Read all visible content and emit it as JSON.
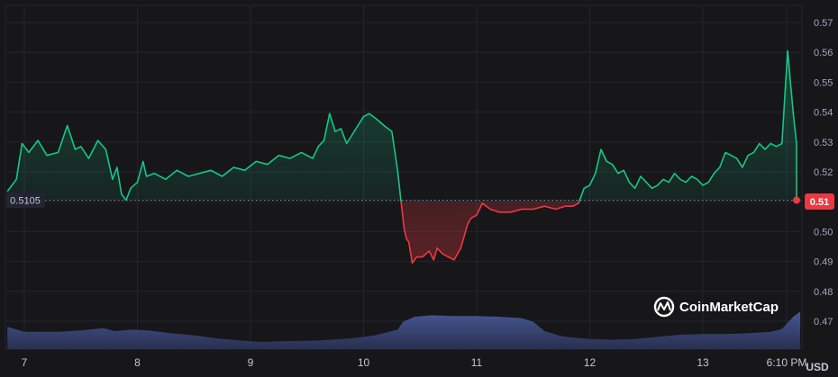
{
  "chart_data": {
    "type": "area",
    "x_ticks": [
      "7",
      "8",
      "9",
      "10",
      "11",
      "12",
      "13",
      "6:10 PM"
    ],
    "y_ticks": [
      "0.57",
      "0.56",
      "0.55",
      "0.54",
      "0.53",
      "0.52",
      "0.51",
      "0.50",
      "0.49",
      "0.48",
      "0.47"
    ],
    "ylim": [
      0.466,
      0.571
    ],
    "y_unit": "USD",
    "reference_price": 0.5105,
    "reference_label": "0.5105",
    "current_price_label": "0.51",
    "grid": true,
    "watermark": "CoinMarketCap",
    "colors": {
      "up": "#16c784",
      "down": "#ea3943",
      "volume": "#3f4a7a",
      "grid": "#222531",
      "background": "#17171a"
    },
    "price_series": {
      "x_days": [
        6.85,
        6.93,
        6.98,
        7.04,
        7.12,
        7.2,
        7.3,
        7.38,
        7.45,
        7.5,
        7.57,
        7.65,
        7.72,
        7.78,
        7.82,
        7.86,
        7.9,
        7.94,
        8.0,
        8.05,
        8.08,
        8.15,
        8.25,
        8.35,
        8.45,
        8.55,
        8.65,
        8.75,
        8.85,
        8.95,
        9.05,
        9.15,
        9.25,
        9.35,
        9.45,
        9.55,
        9.6,
        9.65,
        9.7,
        9.75,
        9.8,
        9.85,
        9.9,
        10.0,
        10.05,
        10.12,
        10.18,
        10.25,
        10.3,
        10.33,
        10.36,
        10.38,
        10.4,
        10.43,
        10.47,
        10.52,
        10.58,
        10.62,
        10.65,
        10.7,
        10.75,
        10.8,
        10.86,
        10.92,
        10.95,
        11.0,
        11.05,
        11.12,
        11.2,
        11.3,
        11.4,
        11.5,
        11.6,
        11.7,
        11.78,
        11.85,
        11.9,
        11.95,
        12.0,
        12.05,
        12.1,
        12.15,
        12.2,
        12.25,
        12.3,
        12.35,
        12.4,
        12.45,
        12.5,
        12.55,
        12.6,
        12.65,
        12.7,
        12.75,
        12.8,
        12.85,
        12.9,
        12.95,
        13.0,
        13.05,
        13.1,
        13.15,
        13.2,
        13.25,
        13.3,
        13.35,
        13.4,
        13.45,
        13.5,
        13.55,
        13.6,
        13.65,
        13.7,
        13.75,
        13.8,
        13.85,
        13.9
      ],
      "values": [
        0.5135,
        0.5175,
        0.5295,
        0.5265,
        0.5305,
        0.5255,
        0.5265,
        0.5355,
        0.5275,
        0.5285,
        0.5245,
        0.5305,
        0.5275,
        0.5175,
        0.5215,
        0.5125,
        0.5105,
        0.5145,
        0.5165,
        0.5235,
        0.5185,
        0.5195,
        0.5175,
        0.5205,
        0.5185,
        0.5195,
        0.5205,
        0.5185,
        0.5215,
        0.5205,
        0.5235,
        0.5225,
        0.5255,
        0.5245,
        0.5265,
        0.5245,
        0.5285,
        0.5305,
        0.5395,
        0.5335,
        0.5345,
        0.5295,
        0.5325,
        0.5385,
        0.5395,
        0.5375,
        0.5355,
        0.5335,
        0.5205,
        0.5105,
        0.5005,
        0.4975,
        0.4965,
        0.4895,
        0.4915,
        0.4915,
        0.4935,
        0.4905,
        0.4945,
        0.4925,
        0.4915,
        0.4905,
        0.4945,
        0.5025,
        0.5045,
        0.5055,
        0.5095,
        0.5075,
        0.5065,
        0.5065,
        0.5075,
        0.5075,
        0.5085,
        0.5075,
        0.5085,
        0.5085,
        0.5095,
        0.5145,
        0.5155,
        0.5195,
        0.5275,
        0.5235,
        0.5225,
        0.5195,
        0.5205,
        0.5165,
        0.5145,
        0.5185,
        0.5165,
        0.5145,
        0.5155,
        0.5175,
        0.5165,
        0.5195,
        0.5175,
        0.5165,
        0.5185,
        0.5175,
        0.5155,
        0.5165,
        0.5195,
        0.5215,
        0.5265,
        0.5255,
        0.5245,
        0.5215,
        0.5255,
        0.5265,
        0.5295,
        0.5275,
        0.5295,
        0.5285,
        0.5295,
        0.5605,
        0.5395,
        0.5295,
        0.5105
      ]
    },
    "volume_series": {
      "x_days": [
        6.85,
        7.0,
        7.3,
        7.5,
        7.7,
        7.8,
        7.95,
        8.1,
        8.3,
        8.5,
        8.7,
        8.9,
        9.1,
        9.3,
        9.6,
        9.9,
        10.1,
        10.3,
        10.35,
        10.45,
        10.6,
        10.8,
        11.0,
        11.2,
        11.4,
        11.5,
        11.6,
        11.75,
        11.85,
        12.0,
        12.2,
        12.4,
        12.6,
        12.8,
        13.0,
        13.2,
        13.4,
        13.6,
        13.7,
        13.8,
        13.9
      ],
      "values": [
        0.31,
        0.24,
        0.24,
        0.26,
        0.29,
        0.25,
        0.27,
        0.26,
        0.22,
        0.19,
        0.15,
        0.12,
        0.1,
        0.11,
        0.12,
        0.15,
        0.19,
        0.27,
        0.38,
        0.45,
        0.47,
        0.46,
        0.46,
        0.45,
        0.43,
        0.38,
        0.25,
        0.18,
        0.16,
        0.14,
        0.13,
        0.14,
        0.17,
        0.2,
        0.21,
        0.21,
        0.22,
        0.24,
        0.28,
        0.45,
        0.52
      ]
    }
  }
}
